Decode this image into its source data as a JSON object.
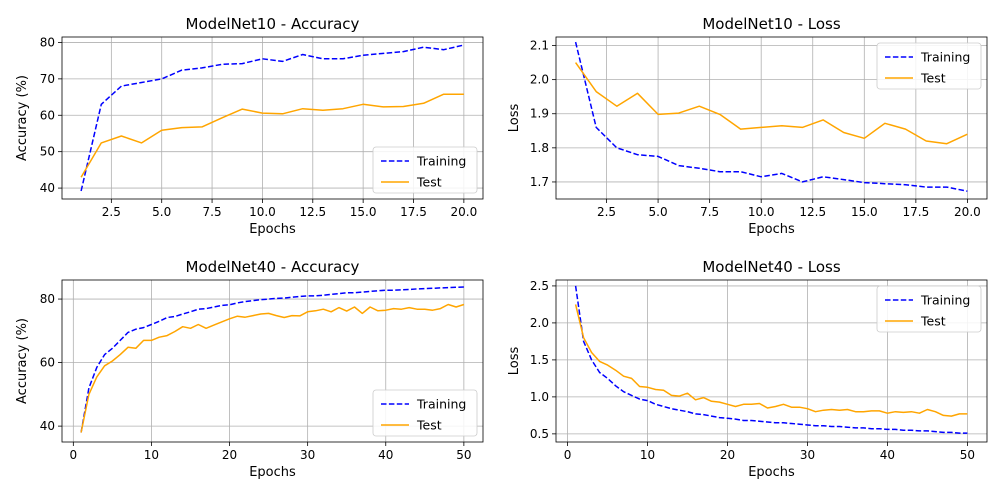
{
  "chart_data": [
    {
      "type": "line",
      "title": "ModelNet10 - Accuracy",
      "xlabel": "Epochs",
      "ylabel": "Accuracy (%)",
      "xlim": [
        0.05,
        20.95
      ],
      "ylim": [
        37.0,
        81.5
      ],
      "xticks": [
        2.5,
        5.0,
        7.5,
        10.0,
        12.5,
        15.0,
        17.5,
        20.0
      ],
      "xtick_labels": [
        "2.5",
        "5.0",
        "7.5",
        "10.0",
        "12.5",
        "15.0",
        "17.5",
        "20.0"
      ],
      "yticks": [
        40,
        50,
        60,
        70,
        80
      ],
      "ytick_labels": [
        "40",
        "50",
        "60",
        "70",
        "80"
      ],
      "grid": true,
      "legend": "lower right",
      "x": [
        1,
        2,
        3,
        4,
        5,
        6,
        7,
        8,
        9,
        10,
        11,
        12,
        13,
        14,
        15,
        16,
        17,
        18,
        19,
        20
      ],
      "series": [
        {
          "name": "Training",
          "color": "#0000ff",
          "dash": true,
          "values": [
            39.2,
            63.0,
            68.0,
            69.0,
            70.0,
            72.4,
            73.0,
            74.0,
            74.2,
            75.5,
            74.8,
            76.7,
            75.5,
            75.5,
            76.5,
            77.0,
            77.5,
            78.7,
            78.0,
            79.3
          ]
        },
        {
          "name": "Test",
          "color": "#ffa500",
          "dash": false,
          "values": [
            43.0,
            52.4,
            54.3,
            52.4,
            55.9,
            56.6,
            56.8,
            59.3,
            61.7,
            60.6,
            60.4,
            61.8,
            61.4,
            61.8,
            63.0,
            62.3,
            62.4,
            63.3,
            65.8,
            65.8
          ]
        }
      ]
    },
    {
      "type": "line",
      "title": "ModelNet10 - Loss",
      "xlabel": "Epochs",
      "ylabel": "Loss",
      "xlim": [
        0.05,
        20.95
      ],
      "ylim": [
        1.65,
        2.125
      ],
      "xticks": [
        2.5,
        5.0,
        7.5,
        10.0,
        12.5,
        15.0,
        17.5,
        20.0
      ],
      "xtick_labels": [
        "2.5",
        "5.0",
        "7.5",
        "10.0",
        "12.5",
        "15.0",
        "17.5",
        "20.0"
      ],
      "yticks": [
        1.7,
        1.8,
        1.9,
        2.0,
        2.1
      ],
      "ytick_labels": [
        "1.7",
        "1.8",
        "1.9",
        "2.0",
        "2.1"
      ],
      "grid": true,
      "legend": "upper right",
      "x": [
        1,
        2,
        3,
        4,
        5,
        6,
        7,
        8,
        9,
        10,
        11,
        12,
        13,
        14,
        15,
        16,
        17,
        18,
        19,
        20
      ],
      "series": [
        {
          "name": "Training",
          "color": "#0000ff",
          "dash": true,
          "values": [
            2.11,
            1.86,
            1.8,
            1.78,
            1.775,
            1.748,
            1.74,
            1.73,
            1.73,
            1.715,
            1.725,
            1.7,
            1.715,
            1.707,
            1.698,
            1.695,
            1.692,
            1.685,
            1.685,
            1.673
          ]
        },
        {
          "name": "Test",
          "color": "#ffa500",
          "dash": false,
          "values": [
            2.05,
            1.965,
            1.922,
            1.96,
            1.898,
            1.902,
            1.922,
            1.898,
            1.855,
            1.86,
            1.865,
            1.86,
            1.882,
            1.845,
            1.828,
            1.872,
            1.855,
            1.82,
            1.812,
            1.84
          ]
        }
      ]
    },
    {
      "type": "line",
      "title": "ModelNet40 - Accuracy",
      "xlabel": "Epochs",
      "ylabel": "Accuracy (%)",
      "xlim": [
        -1.45,
        52.45
      ],
      "ylim": [
        35.0,
        86.0
      ],
      "xticks": [
        0,
        10,
        20,
        30,
        40,
        50
      ],
      "xtick_labels": [
        "0",
        "10",
        "20",
        "30",
        "40",
        "50"
      ],
      "yticks": [
        40,
        60,
        80
      ],
      "ytick_labels": [
        "40",
        "60",
        "80"
      ],
      "grid": true,
      "legend": "lower right",
      "x": [
        1,
        2,
        3,
        4,
        5,
        6,
        7,
        8,
        9,
        10,
        11,
        12,
        13,
        14,
        15,
        16,
        17,
        18,
        19,
        20,
        21,
        22,
        23,
        24,
        25,
        26,
        27,
        28,
        29,
        30,
        31,
        32,
        33,
        34,
        35,
        36,
        37,
        38,
        39,
        40,
        41,
        42,
        43,
        44,
        45,
        46,
        47,
        48,
        49,
        50
      ],
      "series": [
        {
          "name": "Training",
          "color": "#0000ff",
          "dash": true,
          "values": [
            38.0,
            52.0,
            58.5,
            62.5,
            64.5,
            67.0,
            69.5,
            70.5,
            71.0,
            72.0,
            73.0,
            74.2,
            74.5,
            75.3,
            76.0,
            76.8,
            77.0,
            77.5,
            78.0,
            78.2,
            78.8,
            79.2,
            79.5,
            79.8,
            80.0,
            80.2,
            80.3,
            80.6,
            80.8,
            81.0,
            81.0,
            81.2,
            81.5,
            81.7,
            82.0,
            82.0,
            82.2,
            82.4,
            82.6,
            82.8,
            82.8,
            82.9,
            83.0,
            83.2,
            83.3,
            83.4,
            83.5,
            83.6,
            83.7,
            83.8
          ]
        },
        {
          "name": "Test",
          "color": "#ffa500",
          "dash": false,
          "values": [
            38.0,
            50.0,
            55.5,
            59.0,
            60.5,
            62.5,
            64.8,
            64.5,
            67.0,
            67.0,
            68.0,
            68.5,
            69.8,
            71.3,
            70.8,
            72.0,
            70.8,
            71.8,
            72.8,
            73.8,
            74.6,
            74.3,
            74.8,
            75.3,
            75.5,
            74.8,
            74.2,
            74.8,
            74.7,
            76.0,
            76.3,
            76.8,
            76.0,
            77.3,
            76.2,
            77.5,
            75.5,
            77.5,
            76.3,
            76.5,
            77.0,
            76.8,
            77.3,
            76.8,
            76.8,
            76.5,
            77.0,
            78.3,
            77.5,
            78.3
          ]
        }
      ]
    },
    {
      "type": "line",
      "title": "ModelNet40 - Loss",
      "xlabel": "Epochs",
      "ylabel": "Loss",
      "xlim": [
        -1.45,
        52.45
      ],
      "ylim": [
        0.39,
        2.58
      ],
      "xticks": [
        0,
        10,
        20,
        30,
        40,
        50
      ],
      "xtick_labels": [
        "0",
        "10",
        "20",
        "30",
        "40",
        "50"
      ],
      "yticks": [
        0.5,
        1.0,
        1.5,
        2.0,
        2.5
      ],
      "ytick_labels": [
        "0.5",
        "1.0",
        "1.5",
        "2.0",
        "2.5"
      ],
      "grid": true,
      "legend": "upper right",
      "x": [
        1,
        2,
        3,
        4,
        5,
        6,
        7,
        8,
        9,
        10,
        11,
        12,
        13,
        14,
        15,
        16,
        17,
        18,
        19,
        20,
        21,
        22,
        23,
        24,
        25,
        26,
        27,
        28,
        29,
        30,
        31,
        32,
        33,
        34,
        35,
        36,
        37,
        38,
        39,
        40,
        41,
        42,
        43,
        44,
        45,
        46,
        47,
        48,
        49,
        50
      ],
      "series": [
        {
          "name": "Training",
          "color": "#0000ff",
          "dash": true,
          "values": [
            2.5,
            1.75,
            1.5,
            1.33,
            1.25,
            1.15,
            1.07,
            1.02,
            0.97,
            0.95,
            0.9,
            0.87,
            0.84,
            0.82,
            0.8,
            0.77,
            0.76,
            0.74,
            0.72,
            0.71,
            0.7,
            0.68,
            0.68,
            0.67,
            0.66,
            0.65,
            0.65,
            0.64,
            0.63,
            0.62,
            0.61,
            0.61,
            0.6,
            0.6,
            0.59,
            0.58,
            0.58,
            0.57,
            0.57,
            0.56,
            0.56,
            0.55,
            0.55,
            0.54,
            0.54,
            0.53,
            0.52,
            0.52,
            0.51,
            0.51
          ]
        },
        {
          "name": "Test",
          "color": "#ffa500",
          "dash": false,
          "values": [
            2.25,
            1.8,
            1.6,
            1.48,
            1.43,
            1.36,
            1.28,
            1.25,
            1.14,
            1.13,
            1.1,
            1.09,
            1.02,
            1.01,
            1.05,
            0.96,
            0.99,
            0.94,
            0.93,
            0.9,
            0.87,
            0.9,
            0.9,
            0.91,
            0.85,
            0.87,
            0.9,
            0.86,
            0.86,
            0.84,
            0.8,
            0.82,
            0.83,
            0.82,
            0.83,
            0.8,
            0.8,
            0.81,
            0.81,
            0.78,
            0.8,
            0.79,
            0.8,
            0.78,
            0.83,
            0.8,
            0.75,
            0.74,
            0.77,
            0.77
          ]
        }
      ]
    }
  ]
}
